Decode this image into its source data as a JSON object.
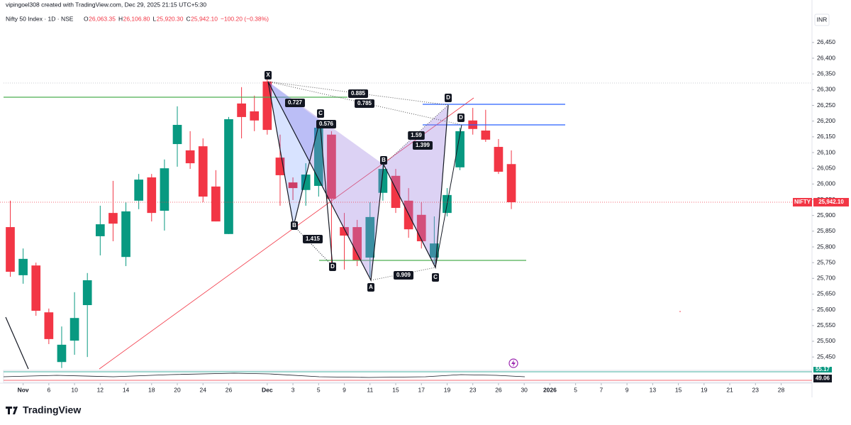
{
  "chart_data": {
    "type": "candlestick",
    "credit": "vipingoel308 created with TradingView.com, Dec 29, 2025 21:15 UTC+5:30",
    "symbol": "Nifty 50 Index · 1D · NSE",
    "legend": [
      {
        "label": "O",
        "value": "26,063.35"
      },
      {
        "label": "H",
        "value": "26,106.80"
      },
      {
        "label": "L",
        "value": "25,920.30"
      },
      {
        "label": "C",
        "value": "25,942.10"
      }
    ],
    "change": "−100.20 (−0.38%)",
    "currency": "INR",
    "up_color": "#089981",
    "down_color": "#f23645",
    "open": [
      25863,
      25710,
      25741,
      25592,
      25434,
      25502,
      25615,
      25834,
      25908,
      25768,
      25947,
      26021,
      25915,
      26127,
      26107,
      26120,
      25992,
      25841,
      26256,
      26231,
      26326,
      26084,
      26005,
      25981,
      25994,
      26157,
      25863,
      25863,
      25766,
      25972,
      26026,
      25947,
      25902,
      25766,
      25908,
      26053,
      26202,
      26170,
      26118,
      26063.35
    ],
    "high": [
      25947,
      25795,
      25750,
      25604,
      25547,
      25656,
      25717,
      25931,
      26010,
      25942,
      26032,
      26032,
      26078,
      26247,
      26168,
      26145,
      26044,
      26213,
      26308,
      26281,
      26333,
      26157,
      26021,
      26066,
      26202,
      26168,
      25908,
      25886,
      25942,
      26071,
      26048,
      25987,
      25942,
      25897,
      25987,
      26179,
      26242,
      26236,
      26143,
      26106.8
    ],
    "low": [
      25705,
      25683,
      25581,
      25491,
      25415,
      25457,
      25450,
      25773,
      25818,
      25739,
      25920,
      25881,
      25852,
      26055,
      26048,
      25942,
      25881,
      25841,
      26145,
      26168,
      26157,
      25931,
      25949,
      25931,
      25960,
      25746,
      25728,
      25739,
      25705,
      25947,
      25908,
      25829,
      25795,
      25746,
      25897,
      26044,
      26157,
      26134,
      26032,
      25920.3
    ],
    "close": [
      25721,
      25762,
      25597,
      25507,
      25489,
      25574,
      25694,
      25872,
      25874,
      25913,
      26014,
      25908,
      26050,
      26188,
      26066,
      25960,
      25881,
      26206,
      26213,
      26202,
      26172,
      26028,
      25987,
      26030,
      26179,
      25953,
      25836,
      25757,
      25895,
      26048,
      25924,
      25856,
      25818,
      25811,
      25965,
      26168,
      26175,
      26141,
      26039,
      25942.1
    ],
    "xlim": [
      -0.8,
      62.4
    ],
    "xticks": [
      {
        "value": 1,
        "label": "Nov"
      },
      {
        "value": 3,
        "label": "6"
      },
      {
        "value": 5,
        "label": "10"
      },
      {
        "value": 7,
        "label": "12"
      },
      {
        "value": 9,
        "label": "14"
      },
      {
        "value": 11,
        "label": "18"
      },
      {
        "value": 13,
        "label": "20"
      },
      {
        "value": 15,
        "label": "24"
      },
      {
        "value": 17,
        "label": "26"
      },
      {
        "value": 20,
        "label": "Dec"
      },
      {
        "value": 22,
        "label": "3"
      },
      {
        "value": 24,
        "label": "5"
      },
      {
        "value": 26,
        "label": "9"
      },
      {
        "value": 28,
        "label": "11"
      },
      {
        "value": 30,
        "label": "15"
      },
      {
        "value": 32,
        "label": "17"
      },
      {
        "value": 34,
        "label": "19"
      },
      {
        "value": 36,
        "label": "23"
      },
      {
        "value": 38,
        "label": "26"
      },
      {
        "value": 40,
        "label": "30"
      },
      {
        "value": 42,
        "label": "2026"
      },
      {
        "value": 44,
        "label": "5"
      },
      {
        "value": 46,
        "label": "7"
      },
      {
        "value": 48,
        "label": "9"
      },
      {
        "value": 50,
        "label": "13"
      },
      {
        "value": 52,
        "label": "15"
      },
      {
        "value": 54,
        "label": "19"
      },
      {
        "value": 56,
        "label": "21"
      },
      {
        "value": 58,
        "label": "23"
      },
      {
        "value": 60,
        "label": "28"
      }
    ],
    "ylim": [
      25412,
      26567
    ],
    "yticks": [
      {
        "value": 25450,
        "label": "25,450"
      },
      {
        "value": 25500,
        "label": "25,500"
      },
      {
        "value": 25550,
        "label": "25,550"
      },
      {
        "value": 25600,
        "label": "25,600"
      },
      {
        "value": 25650,
        "label": "25,650"
      },
      {
        "value": 25700,
        "label": "25,700"
      },
      {
        "value": 25750,
        "label": "25,750"
      },
      {
        "value": 25800,
        "label": "25,800"
      },
      {
        "value": 25850,
        "label": "25,850"
      },
      {
        "value": 25900,
        "label": "25,900"
      },
      {
        "value": 25950,
        "label": "25,950"
      },
      {
        "value": 26000,
        "label": "26,000"
      },
      {
        "value": 26050,
        "label": "26,050"
      },
      {
        "value": 26100,
        "label": "26,100"
      },
      {
        "value": 26150,
        "label": "26,150"
      },
      {
        "value": 26200,
        "label": "26,200"
      },
      {
        "value": 26250,
        "label": "26,250"
      },
      {
        "value": 26300,
        "label": "26,300"
      },
      {
        "value": 26350,
        "label": "26,350"
      },
      {
        "value": 26400,
        "label": "26,400"
      },
      {
        "value": 26450,
        "label": "26,450"
      }
    ],
    "last_price": 25942.1,
    "last_price_label": "25,942.10",
    "symbol_tag": "NIFTY",
    "pattern_labels": [
      "X",
      "C",
      "B",
      "D",
      "A",
      "B",
      "C",
      "D",
      "D"
    ],
    "ratios": [
      0.727,
      0.885,
      0.785,
      0.576,
      1.59,
      1.399,
      1.415,
      0.909
    ],
    "indicator_labels": [
      "55.17",
      "49.06"
    ],
    "brand": "TradingView"
  }
}
